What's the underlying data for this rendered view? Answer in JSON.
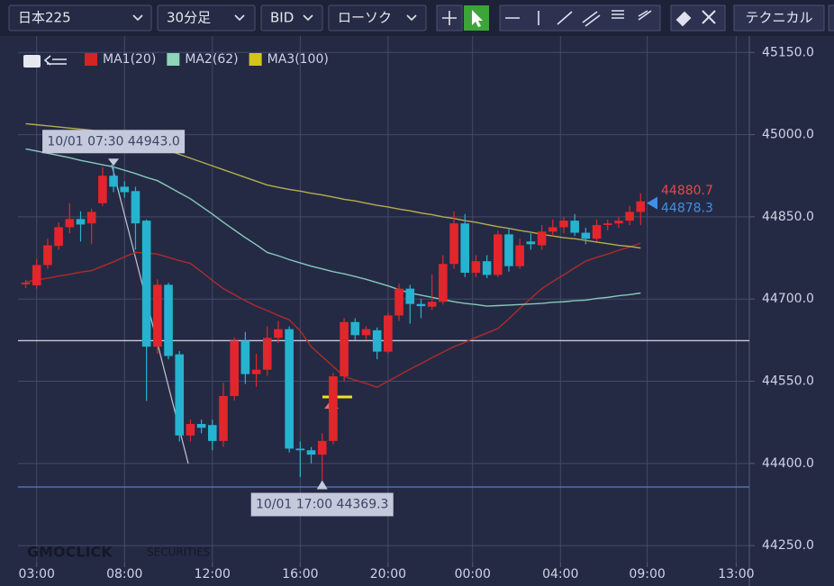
{
  "toolbar": {
    "symbol": "日本225",
    "timeframe": "30分足",
    "price_type": "BID",
    "chart_style": "ローソク",
    "technical": "テクニカル"
  },
  "watermark": {
    "brand": "GMOCLICK",
    "suffix": "SECURITIES"
  },
  "chart_data": {
    "type": "candlestick",
    "up_color": "#e2262c",
    "down_color": "#26b3cf",
    "open": [
      44727,
      44725,
      44762,
      44797,
      44831,
      44846,
      44838,
      44875,
      44925,
      44905,
      44897,
      44843,
      44613,
      44726,
      44599,
      44451,
      44472,
      44470,
      44441,
      44523,
      44624,
      44563,
      44571,
      44629,
      44645,
      44427,
      44424,
      44416,
      44441,
      44559,
      44658,
      44634,
      44643,
      44604,
      44670,
      44719,
      44691,
      44686,
      44695,
      44764,
      44838,
      44748,
      44769,
      44744,
      44818,
      44760,
      44805,
      44798,
      44823,
      44831,
      44843,
      44821,
      44810,
      44835,
      44838,
      44843,
      44859
    ],
    "high": [
      44735,
      44773,
      44810,
      44840,
      44875,
      44860,
      44865,
      44941,
      44943,
      44915,
      44905,
      44845,
      44736,
      44730,
      44605,
      44480,
      44480,
      44480,
      44547,
      44630,
      44640,
      44600,
      44650,
      44660,
      44650,
      44440,
      44430,
      44455,
      44565,
      44665,
      44665,
      44650,
      44648,
      44675,
      44728,
      44726,
      44700,
      44745,
      44780,
      44860,
      44855,
      44780,
      44780,
      44825,
      44830,
      44810,
      44820,
      44835,
      44845,
      44850,
      44855,
      44830,
      44845,
      44845,
      44850,
      44870,
      44893
    ],
    "low": [
      44720,
      44719,
      44755,
      44790,
      44820,
      44805,
      44800,
      44870,
      44895,
      44885,
      44790,
      44514,
      44600,
      44590,
      44440,
      44440,
      44455,
      44424,
      44430,
      44515,
      44545,
      44540,
      44560,
      44620,
      44420,
      44375,
      44400,
      44369.3,
      44435,
      44550,
      44625,
      44625,
      44590,
      44600,
      44660,
      44655,
      44665,
      44680,
      44690,
      44755,
      44740,
      44740,
      44738,
      44740,
      44750,
      44755,
      44790,
      44790,
      44815,
      44820,
      44815,
      44800,
      44805,
      44825,
      44830,
      44835,
      44835
    ],
    "close": [
      44730,
      44762,
      44798,
      44831,
      44846,
      44836,
      44859,
      44925,
      44905,
      44895,
      44838,
      44613,
      44726,
      44596,
      44451,
      44472,
      44465,
      44441,
      44523,
      44624,
      44563,
      44571,
      44629,
      44645,
      44427,
      44424,
      44416,
      44441,
      44559,
      44658,
      44634,
      44645,
      44604,
      44670,
      44719,
      44691,
      44687,
      44695,
      44764,
      44838,
      44748,
      44769,
      44744,
      44818,
      44760,
      44798,
      44800,
      44823,
      44831,
      44843,
      44821,
      44810,
      44835,
      44838,
      44843,
      44859,
      44878.3
    ],
    "series": [
      {
        "name": "MA1(20)",
        "color": "#d42424",
        "line_color": "#b02a2a",
        "values": [
          44731,
          44735,
          44738,
          44742,
          44745,
          44749,
          44752,
          44760,
          44768,
          44777,
          44785,
          44784,
          44782,
          44776,
          44770,
          44765,
          44750,
          44734,
          44719,
          44708,
          44697,
          44687,
          44679,
          44670,
          44662,
          44642,
          44613,
          44595,
          44577,
          44559,
          44552,
          44546,
          44539,
          44550,
          44561,
          44572,
          44582,
          44593,
          44603,
          44613,
          44621,
          44630,
          44638,
          44646,
          44664,
          44683,
          44701,
          44719,
          44732,
          44744,
          44757,
          44769,
          44776,
          44782,
          44789,
          44795,
          44802
        ]
      },
      {
        "name": "MA2(62)",
        "color": "#8fd4b8",
        "line_color": "#86c9bb",
        "values": [
          44974,
          44970,
          44966,
          44962,
          44958,
          44953,
          44949,
          44945,
          44941,
          44935,
          44929,
          44922,
          44916,
          44905,
          44894,
          44883,
          44869,
          44855,
          44840,
          44826,
          44812,
          44799,
          44785,
          44779,
          44772,
          44766,
          44760,
          44755,
          44750,
          44746,
          44741,
          44736,
          44730,
          44724,
          44717,
          44711,
          44707,
          44703,
          44699,
          44695,
          44692,
          44690,
          44687,
          44688,
          44689,
          44690,
          44691,
          44692,
          44694,
          44695,
          44697,
          44698,
          44701,
          44703,
          44706,
          44708,
          44711
        ]
      },
      {
        "name": "MA3(100)",
        "color": "#d2c61c",
        "line_color": "#b5ad4c",
        "values": [
          45020,
          45018,
          45016,
          45014,
          45012,
          45010,
          45008,
          45005,
          45003,
          44997,
          44990,
          44984,
          44977,
          44971,
          44964,
          44957,
          44950,
          44943,
          44936,
          44929,
          44922,
          44915,
          44908,
          44904,
          44900,
          44897,
          44893,
          44890,
          44886,
          44882,
          44879,
          44875,
          44871,
          44868,
          44864,
          44861,
          44857,
          44854,
          44850,
          44847,
          44843,
          44840,
          44836,
          44832,
          44829,
          44825,
          44822,
          44818,
          44815,
          44812,
          44810,
          44807,
          44804,
          44801,
          44798,
          44796,
          44793
        ]
      }
    ],
    "xlim": [
      -0.7,
      65.9
    ],
    "xticks": [
      {
        "value": 1,
        "label": "03:00"
      },
      {
        "value": 9,
        "label": "08:00"
      },
      {
        "value": 17,
        "label": "12:00"
      },
      {
        "value": 25,
        "label": "16:00"
      },
      {
        "value": 33,
        "label": "20:00"
      },
      {
        "value": 40.7,
        "label": "00:00"
      },
      {
        "value": 48.7,
        "label": "04:00"
      },
      {
        "value": 56.6,
        "label": "09:00"
      },
      {
        "value": 64.7,
        "label": "13:00"
      }
    ],
    "ylim": [
      44219,
      45180
    ],
    "yticks": [
      {
        "value": 45150,
        "label": "45150.0"
      },
      {
        "value": 45000,
        "label": "45000.0"
      },
      {
        "value": 44850,
        "label": "44850.0"
      },
      {
        "value": 44700,
        "label": "44700.0"
      },
      {
        "value": 44550,
        "label": "44550.0"
      },
      {
        "value": 44400,
        "label": "44400.0"
      },
      {
        "value": 44250,
        "label": "44250.0"
      }
    ],
    "grid": true,
    "legend": "top-left",
    "hlines": [
      {
        "value": 44624,
        "color": "#c9ccd6"
      },
      {
        "value": 44357,
        "color": "#4d7fd6"
      }
    ],
    "annotations": [
      {
        "text": "10/01 07:30 44943.0",
        "x": 8,
        "y": 44943,
        "side": "above"
      },
      {
        "text": "10/01 17:00 44369.3",
        "x": 27,
        "y": 44369.3,
        "side": "below"
      }
    ],
    "last_prices": [
      {
        "value": 44880.7,
        "color": "#e8474a"
      },
      {
        "value": 44878.3,
        "color": "#3f8fe6"
      }
    ]
  }
}
